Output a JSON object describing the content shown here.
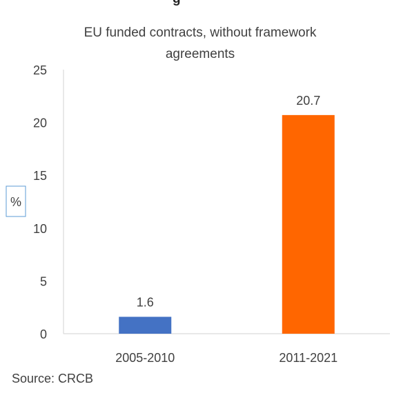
{
  "chart_data": {
    "type": "bar",
    "title": "EU funded contracts, without framework agreements",
    "title_lines": [
      "EU funded contracts, without framework",
      "agreements"
    ],
    "clipped_header_text": "g",
    "categories": [
      "2005-2010",
      "2011-2021"
    ],
    "values": [
      1.6,
      20.7
    ],
    "data_labels": [
      "1.6",
      "20.7"
    ],
    "bar_colors": [
      "#4472C4",
      "#FF6600"
    ],
    "ylabel": "%",
    "xlabel": "",
    "ylim": [
      0,
      25
    ],
    "yticks": [
      0,
      5,
      10,
      15,
      20,
      25
    ],
    "grid": false,
    "legend": "none",
    "source": "Source: CRCB"
  }
}
